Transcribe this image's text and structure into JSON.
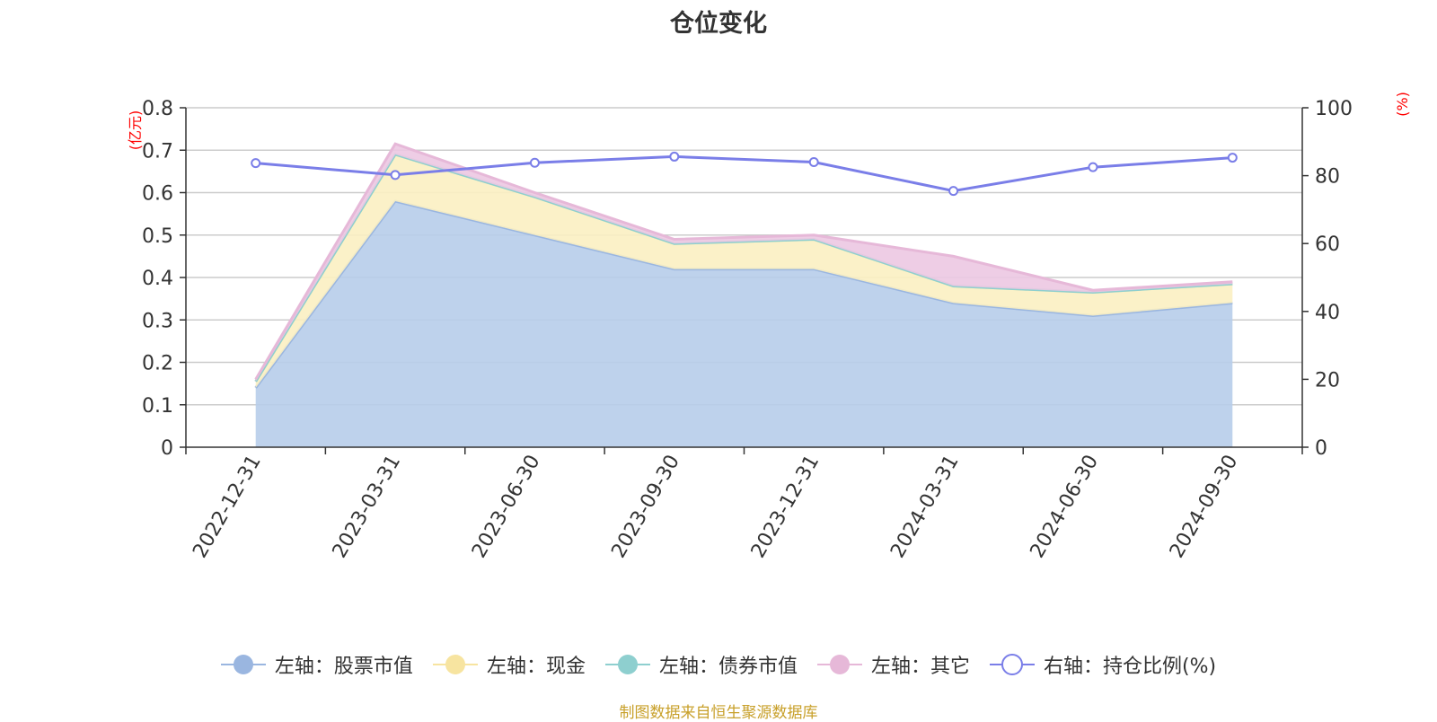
{
  "chart_data": {
    "type": "area",
    "title": "仓位变化",
    "categories": [
      "2022-12-31",
      "2023-03-31",
      "2023-06-30",
      "2023-09-30",
      "2023-12-31",
      "2024-03-31",
      "2024-06-30",
      "2024-09-30"
    ],
    "left_axis": {
      "label": "(亿元)",
      "ylim": [
        0,
        0.8
      ],
      "ticks": [
        "0",
        "0.1",
        "0.2",
        "0.3",
        "0.4",
        "0.5",
        "0.6",
        "0.7",
        "0.8"
      ]
    },
    "right_axis": {
      "label": "(%)",
      "ylim": [
        0,
        100
      ],
      "ticks": [
        "0",
        "20",
        "40",
        "60",
        "80",
        "100"
      ]
    },
    "series": [
      {
        "name": "左轴：股票市值",
        "axis": "left",
        "stacked": true,
        "color": "#9ab6e0",
        "fill": "#b7cdea",
        "values": [
          0.14,
          0.58,
          0.5,
          0.42,
          0.42,
          0.34,
          0.31,
          0.34
        ]
      },
      {
        "name": "左轴：现金",
        "axis": "left",
        "stacked": true,
        "color": "#f7e4a0",
        "fill": "#fbefc2",
        "values": [
          0.015,
          0.11,
          0.09,
          0.06,
          0.07,
          0.04,
          0.055,
          0.045
        ]
      },
      {
        "name": "左轴：债券市值",
        "axis": "left",
        "stacked": true,
        "color": "#8ecfcf",
        "fill": "#a8dada",
        "values": [
          0,
          0,
          0,
          0,
          0,
          0,
          0,
          0
        ]
      },
      {
        "name": "左轴：其它",
        "axis": "left",
        "stacked": true,
        "color": "#e6b8d8",
        "fill": "#ecc8e2",
        "values": [
          0.005,
          0.025,
          0.01,
          0.01,
          0.01,
          0.07,
          0.005,
          0.005
        ]
      },
      {
        "name": "右轴：持仓比例(%)",
        "axis": "right",
        "stacked": false,
        "color": "#7a7ee8",
        "values": [
          83.7,
          80.2,
          83.8,
          85.6,
          84.0,
          75.5,
          82.5,
          85.3
        ]
      }
    ],
    "legend_position": "bottom",
    "grid": true
  },
  "footer": {
    "source": "制图数据来自恒生聚源数据库"
  }
}
